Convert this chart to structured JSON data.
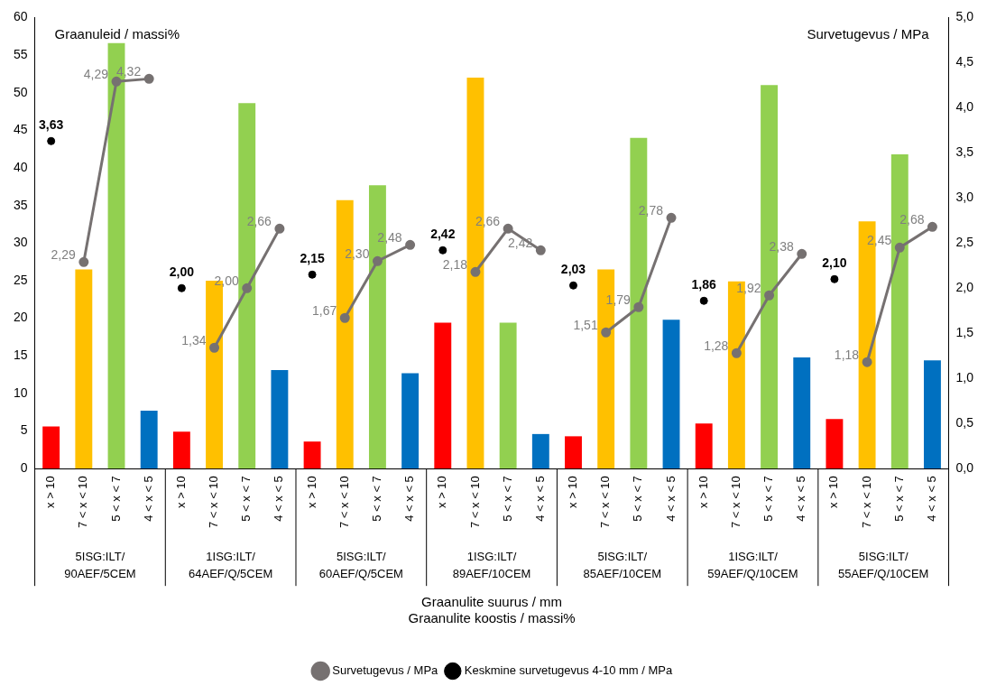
{
  "chart_data": {
    "type": "bar",
    "xlabel": "Graanulite suurus / mm\nGraanulite koostis / massi%",
    "ylabel": "Graanuleid / massi%",
    "y2label": "Survetugevus / MPa",
    "categories": [
      "x > 10",
      "7 < x < 10",
      "5 < x < 7",
      "4 < x < 5",
      "x > 10",
      "7 < x < 10",
      "5 < x < 7",
      "4 < x < 5",
      "x > 10",
      "7 < x < 10",
      "5 < x < 7",
      "4 < x < 5",
      "x > 10",
      "7 < x < 10",
      "5 < x < 7",
      "4 < x < 5",
      "x > 10",
      "7 < x < 10",
      "5 < x < 7",
      "4 < x < 5",
      "x > 10",
      "7 < x < 10",
      "5 < x < 7",
      "4 < x < 5",
      "x > 10",
      "7 < x < 10",
      "5 < x < 7",
      "4 < x < 5"
    ],
    "series": [
      {
        "values": [
          5.6,
          26.5,
          56.6,
          7.7,
          4.9,
          25,
          48.6,
          13.1,
          3.6,
          35.7,
          37.7,
          12.7,
          19.4,
          52,
          19.4,
          4.6,
          4.3,
          26.5,
          44,
          19.8,
          6,
          24.9,
          51,
          14.8,
          6.6,
          32.9,
          41.8,
          14.4
        ],
        "colors": [
          "#ff0000",
          "#ffc000",
          "#92d050",
          "#0070c0",
          "#ff0000",
          "#ffc000",
          "#92d050",
          "#0070c0",
          "#ff0000",
          "#ffc000",
          "#92d050",
          "#0070c0",
          "#ff0000",
          "#ffc000",
          "#92d050",
          "#0070c0",
          "#ff0000",
          "#ffc000",
          "#92d050",
          "#0070c0",
          "#ff0000",
          "#ffc000",
          "#92d050",
          "#0070c0",
          "#ff0000",
          "#ffc000",
          "#92d050",
          "#0070c0"
        ]
      },
      {
        "type": "line",
        "name": "Survetugevus / MPa",
        "axis": "y2",
        "color": "#767171",
        "marker": "circle",
        "line_style": "solid",
        "values": [
          null,
          2.29,
          4.29,
          4.32,
          null,
          1.34,
          2.0,
          2.66,
          null,
          1.67,
          2.3,
          2.48,
          null,
          2.18,
          2.66,
          2.42,
          null,
          1.51,
          1.79,
          2.78,
          null,
          1.28,
          1.92,
          2.38,
          null,
          1.18,
          2.45,
          2.68
        ],
        "value_labels": [
          null,
          "2,29",
          "4,29",
          "4,32",
          null,
          "1,34",
          "2,00",
          "2,66",
          null,
          "1,67",
          "2,30",
          "2,48",
          null,
          "2,18",
          "2,66",
          "2,42",
          null,
          "1,51",
          "1,79",
          "2,78",
          null,
          "1,28",
          "1,92",
          "2,38",
          null,
          "1,18",
          "2,45",
          "2,68"
        ]
      },
      {
        "type": "scatter",
        "name": "Keskmine survetugevus 4-10 mm / MPa",
        "axis": "y2",
        "color": "#000000",
        "marker": "circle",
        "values": [
          3.63,
          null,
          null,
          null,
          2.0,
          null,
          null,
          null,
          2.15,
          null,
          null,
          null,
          2.42,
          null,
          null,
          null,
          2.03,
          null,
          null,
          null,
          1.86,
          null,
          null,
          null,
          2.1,
          null,
          null,
          null
        ],
        "value_labels": [
          "3,63",
          null,
          null,
          null,
          "2,00",
          null,
          null,
          null,
          "2,15",
          null,
          null,
          null,
          "2,42",
          null,
          null,
          null,
          "2,03",
          null,
          null,
          null,
          "1,86",
          null,
          null,
          null,
          "2,10",
          null,
          null,
          null
        ]
      }
    ],
    "ylim": [
      0,
      60
    ],
    "yticks": [
      0,
      5,
      10,
      15,
      20,
      25,
      30,
      35,
      40,
      45,
      50,
      55,
      60
    ],
    "y2lim": [
      0,
      5
    ],
    "y2ticks": [
      {
        "value": 0,
        "label": "0,0"
      },
      {
        "value": 0.5,
        "label": "0,5"
      },
      {
        "value": 1,
        "label": "1,0"
      },
      {
        "value": 1.5,
        "label": "1,5"
      },
      {
        "value": 2,
        "label": "2,0"
      },
      {
        "value": 2.5,
        "label": "2,5"
      },
      {
        "value": 3,
        "label": "3,0"
      },
      {
        "value": 3.5,
        "label": "3,5"
      },
      {
        "value": 4,
        "label": "4,0"
      },
      {
        "value": 4.5,
        "label": "4,5"
      },
      {
        "value": 5,
        "label": "5,0"
      }
    ],
    "annotations": [
      "5ISG:ILT/90AEF/5CEM",
      "1ISG:ILT/64AEF/Q/5CEM",
      "5ISG:ILT/60AEF/Q/5CEM",
      "1ISG:ILT/89AEF/10CEM",
      "5ISG:ILT/85AEF/10CEM",
      "1ISG:ILT/59AEF/Q/10CEM",
      "5ISG:ILT/55AEF/Q/10CEM"
    ],
    "grid": false,
    "legend": "bottom"
  }
}
